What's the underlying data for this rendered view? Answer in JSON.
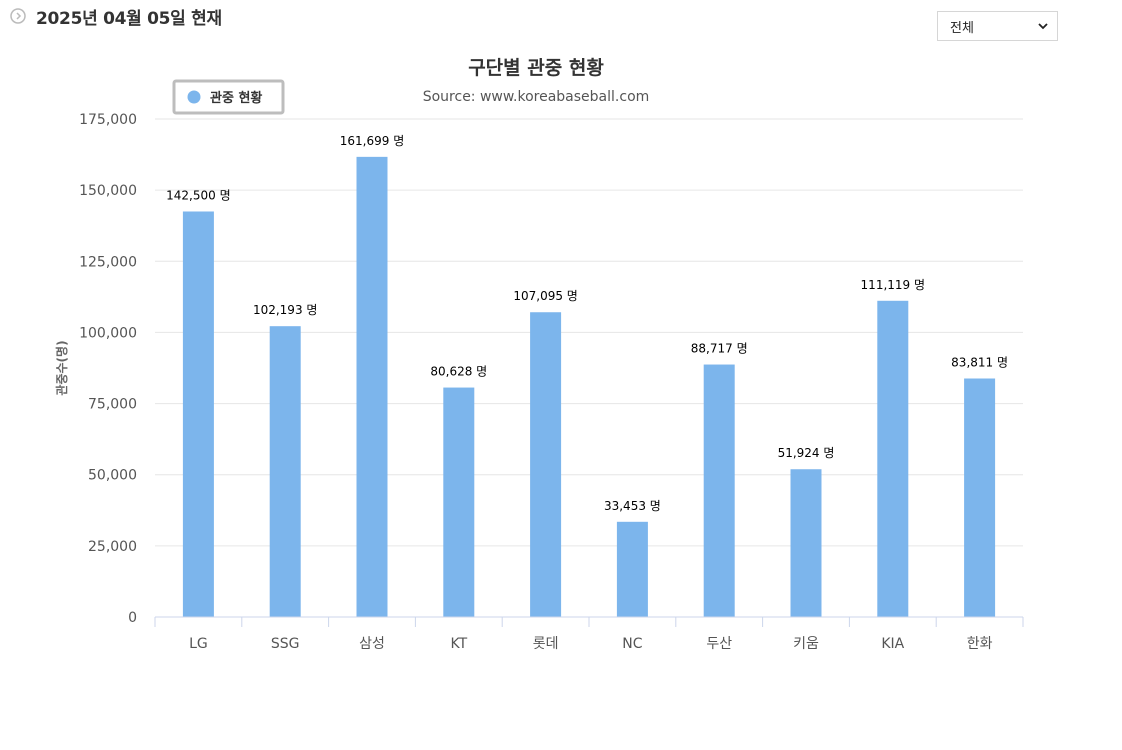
{
  "header": {
    "date_text": "2025년 04월 05일 현재"
  },
  "filter": {
    "selected": "전체"
  },
  "chart_data": {
    "type": "bar",
    "title": "구단별 관중 현황",
    "subtitle": "Source: www.koreabaseball.com",
    "ylabel": "관중수(명)",
    "xlabel": "",
    "ylim": [
      0,
      175000
    ],
    "yticks": [
      0,
      25000,
      50000,
      75000,
      100000,
      125000,
      150000,
      175000
    ],
    "ytick_labels": [
      "0",
      "25,000",
      "50,000",
      "75,000",
      "100,000",
      "125,000",
      "150,000",
      "175,000"
    ],
    "categories": [
      "LG",
      "SSG",
      "삼성",
      "KT",
      "롯데",
      "NC",
      "두산",
      "키움",
      "KIA",
      "한화"
    ],
    "series": [
      {
        "name": "관중 현황",
        "values": [
          142500,
          102193,
          161699,
          80628,
          107095,
          33453,
          88717,
          51924,
          111119,
          83811
        ],
        "labels": [
          "142,500 명",
          "102,193 명",
          "161,699 명",
          "80,628 명",
          "107,095 명",
          "33,453 명",
          "88,717 명",
          "51,924 명",
          "111,119 명",
          "83,811 명"
        ],
        "color": "#7cb5ec"
      }
    ],
    "grid": true,
    "legend_position": "top-left"
  }
}
